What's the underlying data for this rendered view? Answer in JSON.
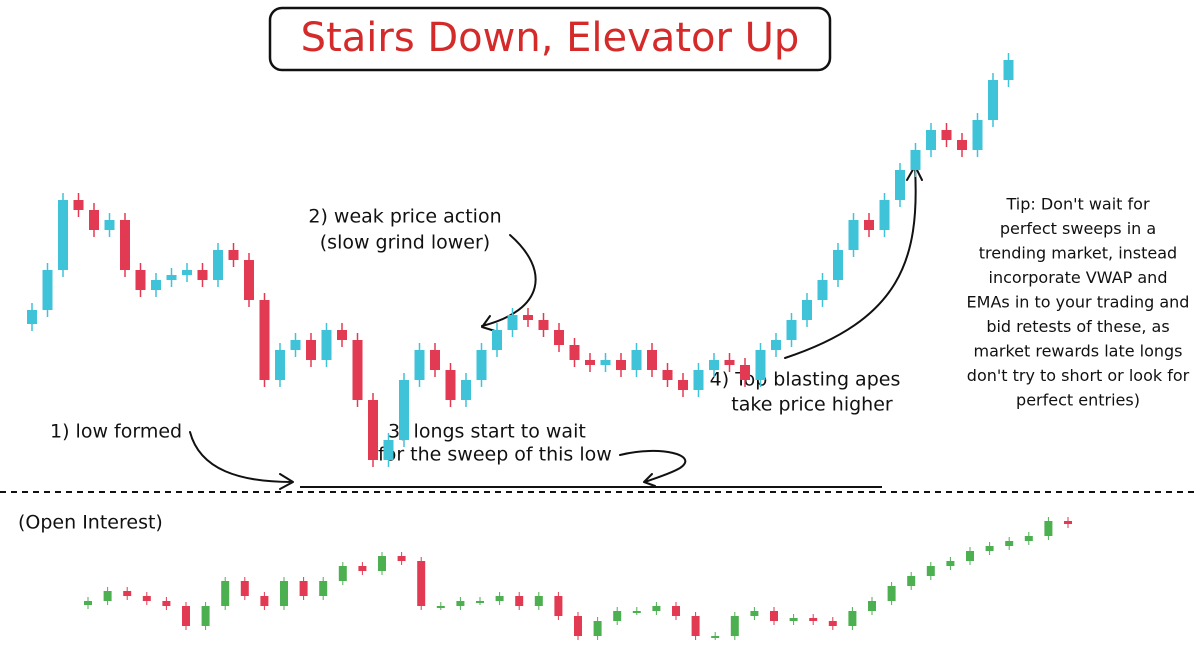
{
  "chart_data": [
    {
      "type": "candlestick",
      "title": "Stairs Down, Elevator Up",
      "annotations": {
        "low": [
          "1) low formed"
        ],
        "weak": [
          "2) weak price action",
          "(slow grind lower)"
        ],
        "longs": [
          "3) longs start to wait",
          "for the sweep of this low"
        ],
        "apes": [
          "4) Top blasting apes",
          "take price higher"
        ],
        "tip": [
          "Tip: Don't wait for",
          "perfect sweeps in a",
          "trending market, instead",
          "incorporate VWAP and",
          "EMAs in to your trading and",
          "bid retests of these, as",
          "market rewards late longs",
          "don't try to short or look for",
          "perfect entries)"
        ]
      },
      "up_color": "#3ec3d9",
      "down_color": "#e23a52",
      "ylim": [
        154,
        654
      ],
      "open": [
        330,
        344,
        384,
        454,
        444,
        424,
        434,
        384,
        364,
        374,
        379,
        384,
        374,
        404,
        394,
        354,
        274,
        304,
        314,
        294,
        324,
        314,
        254,
        194,
        214,
        274,
        304,
        284,
        254,
        274,
        304,
        324,
        339,
        334,
        324,
        309,
        294,
        289,
        294,
        284,
        304,
        284,
        274,
        264,
        284,
        294,
        289,
        274,
        304,
        314,
        334,
        354,
        374,
        404,
        434,
        424,
        454,
        484,
        504,
        524,
        514,
        504,
        534,
        574
      ],
      "high": [
        351,
        391,
        461,
        461,
        451,
        441,
        441,
        391,
        381,
        386,
        391,
        391,
        411,
        411,
        401,
        361,
        311,
        321,
        321,
        331,
        331,
        321,
        261,
        221,
        281,
        311,
        311,
        291,
        281,
        311,
        331,
        346,
        346,
        341,
        331,
        316,
        301,
        301,
        301,
        311,
        311,
        291,
        281,
        291,
        301,
        301,
        296,
        311,
        321,
        341,
        361,
        381,
        411,
        441,
        441,
        461,
        491,
        511,
        531,
        531,
        521,
        541,
        581,
        601
      ],
      "low": [
        323,
        337,
        377,
        437,
        417,
        417,
        377,
        357,
        357,
        367,
        372,
        367,
        367,
        387,
        347,
        267,
        267,
        297,
        287,
        287,
        307,
        247,
        187,
        187,
        207,
        267,
        277,
        247,
        247,
        267,
        297,
        317,
        327,
        317,
        302,
        287,
        282,
        282,
        277,
        277,
        277,
        267,
        257,
        257,
        277,
        282,
        267,
        267,
        297,
        307,
        327,
        347,
        367,
        397,
        417,
        417,
        447,
        477,
        497,
        507,
        497,
        497,
        527,
        567
      ],
      "close": [
        344,
        384,
        454,
        444,
        424,
        434,
        384,
        364,
        374,
        379,
        384,
        374,
        404,
        394,
        354,
        274,
        304,
        314,
        294,
        324,
        314,
        254,
        194,
        214,
        274,
        304,
        284,
        254,
        274,
        304,
        324,
        339,
        334,
        324,
        309,
        294,
        289,
        294,
        284,
        304,
        284,
        274,
        264,
        284,
        294,
        289,
        274,
        304,
        314,
        334,
        354,
        374,
        404,
        434,
        424,
        454,
        484,
        504,
        524,
        514,
        504,
        534,
        574,
        594
      ]
    },
    {
      "type": "candlestick",
      "title": "(Open Interest)",
      "up_color": "#4caf50",
      "down_color": "#e23a52",
      "ylim": [
        0,
        160
      ],
      "open": [
        55,
        59,
        69,
        64,
        59,
        54,
        34,
        54,
        79,
        64,
        54,
        79,
        64,
        79,
        94,
        89,
        104,
        99,
        54,
        54,
        59,
        59,
        64,
        54,
        64,
        44,
        24,
        39,
        49,
        49,
        54,
        44,
        24,
        24,
        44,
        49,
        39,
        42,
        39,
        34,
        49,
        59,
        74,
        84,
        94,
        99,
        109,
        114,
        119,
        124,
        139
      ],
      "close": [
        59,
        69,
        64,
        59,
        54,
        34,
        54,
        79,
        64,
        54,
        79,
        64,
        79,
        94,
        89,
        104,
        99,
        54,
        54,
        59,
        59,
        64,
        54,
        64,
        44,
        24,
        39,
        49,
        49,
        54,
        44,
        24,
        24,
        44,
        49,
        39,
        42,
        39,
        34,
        49,
        59,
        74,
        84,
        94,
        99,
        109,
        114,
        119,
        124,
        139,
        136
      ]
    }
  ]
}
